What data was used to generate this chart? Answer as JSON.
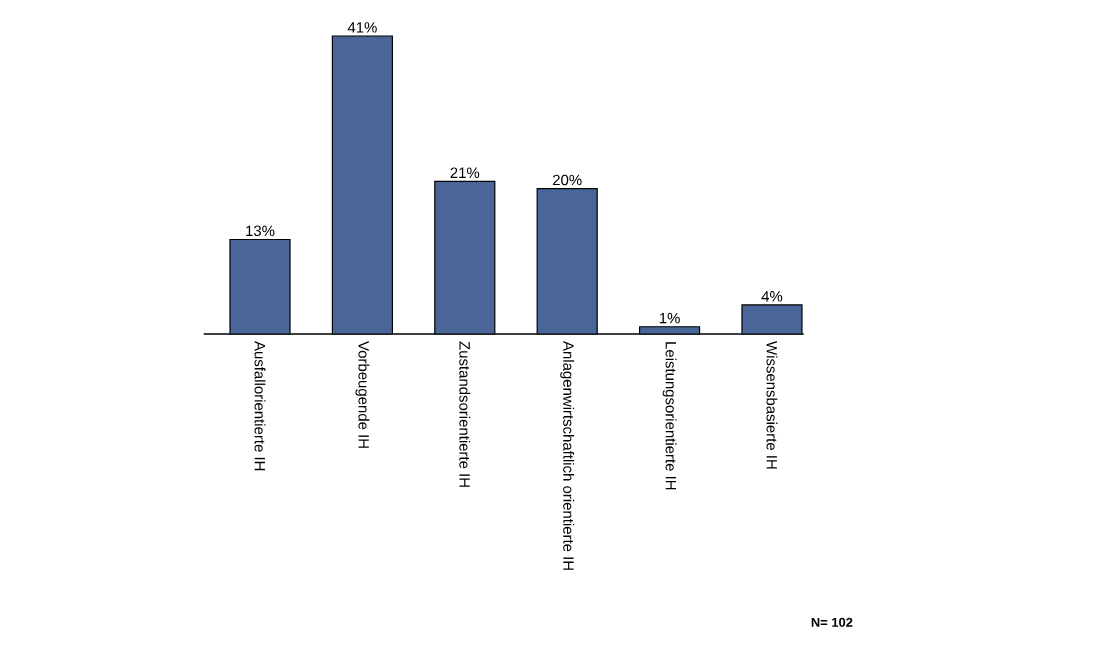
{
  "chart_data": {
    "type": "bar",
    "categories": [
      "Ausfallorientierte  IH",
      "Vorbeugende  IH",
      "Zustandsorientierte IH",
      "Anlagenwirtschaftlich orientierte IH",
      "Leistungsorientierte  IH",
      "Wissensbasierte IH"
    ],
    "values": [
      13,
      41,
      21,
      20,
      1,
      4
    ],
    "value_labels": [
      "13%",
      "41%",
      "21%",
      "20%",
      "1%",
      "4%"
    ],
    "color": "#4a6698",
    "annotations": [
      "N= 102"
    ]
  }
}
